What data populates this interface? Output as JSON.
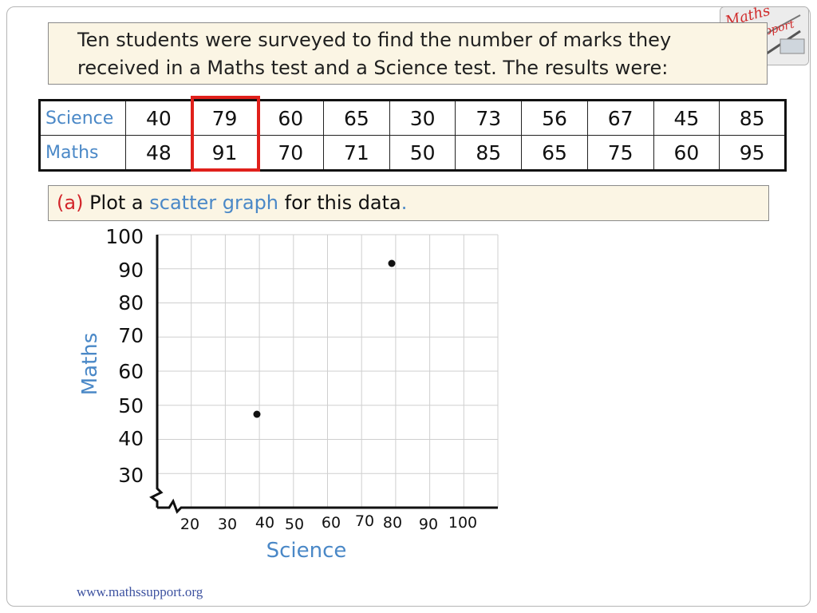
{
  "intro": {
    "line1": "Ten students were surveyed to find the number of marks they",
    "line2": "received in a Maths test and a Science test. The results were:"
  },
  "table": {
    "rows": [
      {
        "label": "Science",
        "values": [
          "40",
          "79",
          "60",
          "65",
          "30",
          "73",
          "56",
          "67",
          "45",
          "85"
        ]
      },
      {
        "label": "Maths",
        "values": [
          "48",
          "91",
          "70",
          "71",
          "50",
          "85",
          "65",
          "75",
          "60",
          "95"
        ]
      }
    ],
    "highlighted_column": 2
  },
  "question": {
    "letter": "(a)",
    "text_before": " Plot a ",
    "term": "scatter graph",
    "text_after": " for this data",
    "end": "."
  },
  "chart_data": {
    "type": "scatter",
    "xlabel": "Science",
    "ylabel": "Maths",
    "x_ticks": [
      "20",
      "30",
      "40",
      "50",
      "60",
      "70",
      "80",
      "90",
      "100"
    ],
    "y_ticks": [
      "30",
      "40",
      "50",
      "60",
      "70",
      "80",
      "90",
      "100"
    ],
    "axis_breaks": true,
    "grid": true,
    "points": [
      {
        "x": 40,
        "y": 48
      },
      {
        "x": 79,
        "y": 91
      }
    ]
  },
  "logo": {
    "text": "Maths Support"
  },
  "footer": {
    "url": "www.mathssupport.org"
  },
  "colors": {
    "label_blue": "#4a88c7",
    "highlight_red": "#e0201b",
    "panel_bg": "#fbf5e4"
  }
}
